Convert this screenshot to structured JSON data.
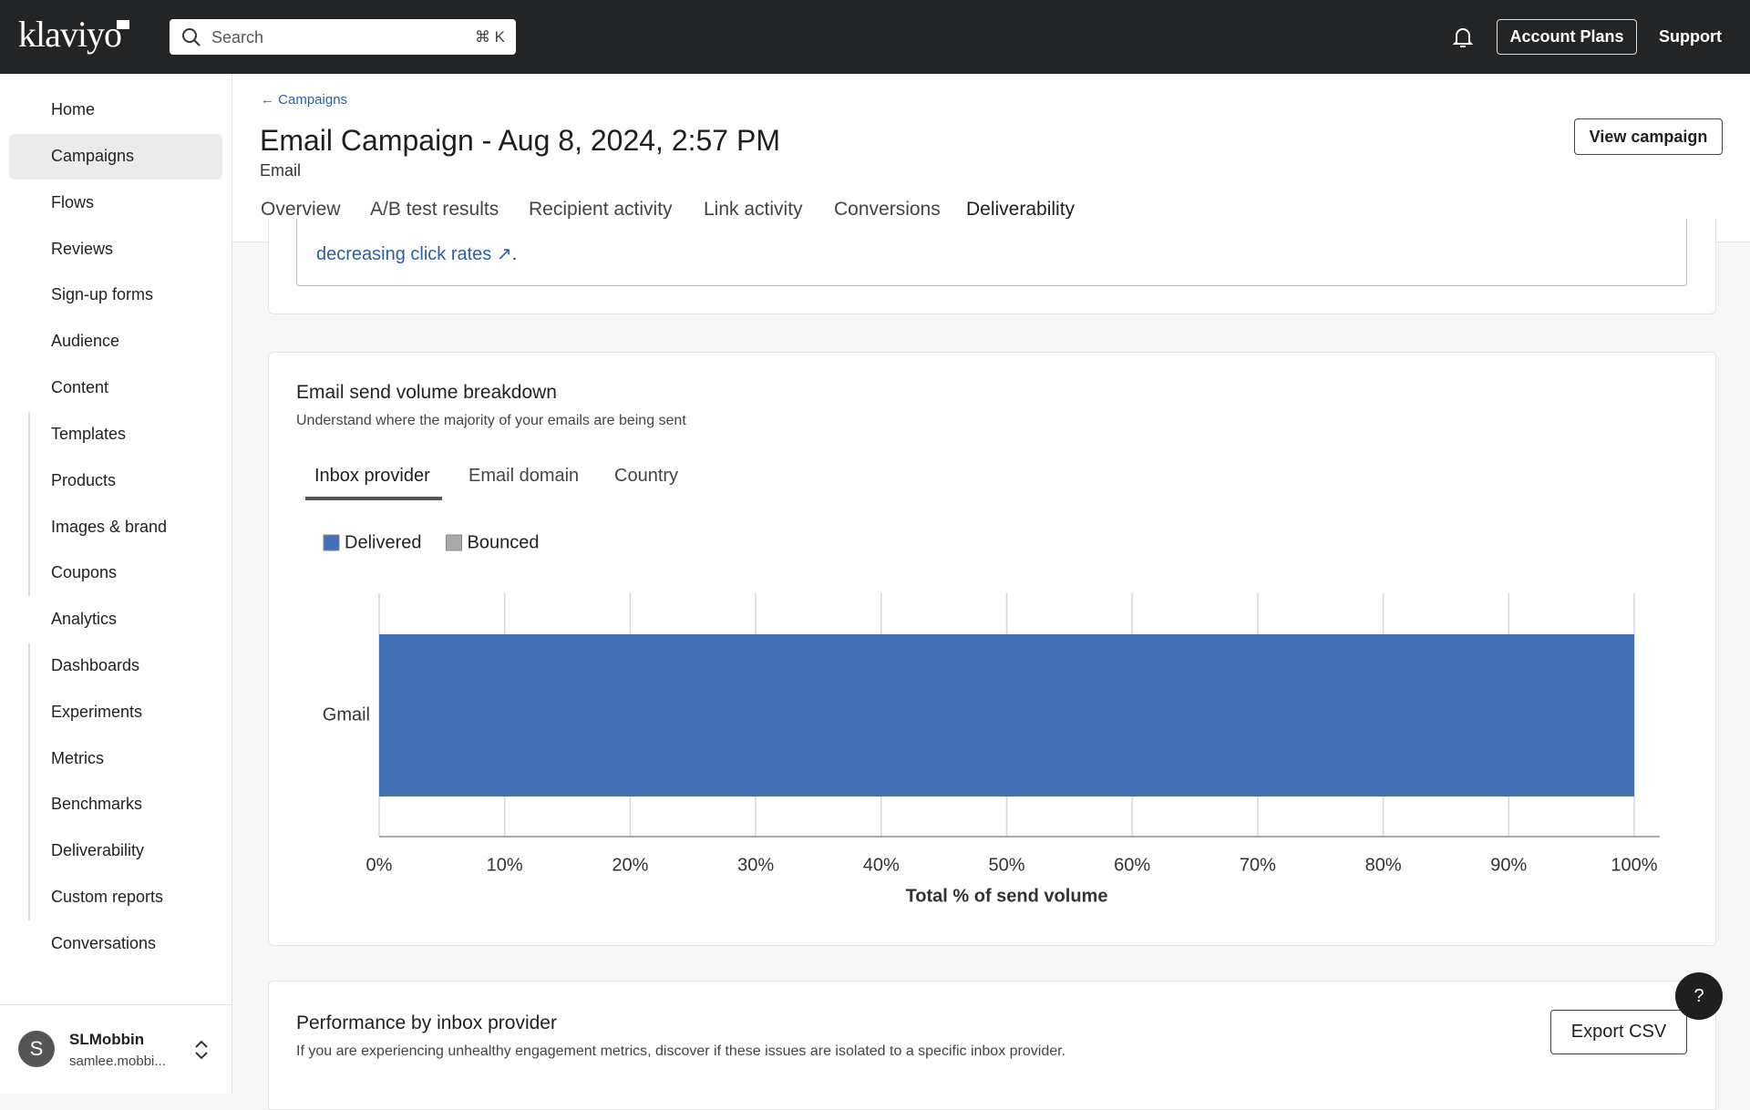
{
  "topbar": {
    "logo": "klaviyo",
    "search": "Search",
    "shortcut": "⌘ K",
    "account_plans": "Account Plans",
    "support": "Support"
  },
  "sidebar": {
    "items": [
      {
        "label": "Home",
        "level": 0
      },
      {
        "label": "Campaigns",
        "level": 0,
        "active": true
      },
      {
        "label": "Flows",
        "level": 0
      },
      {
        "label": "Reviews",
        "level": 0
      },
      {
        "label": "Sign-up forms",
        "level": 0
      },
      {
        "label": "Audience",
        "level": 0,
        "chevron": "down"
      },
      {
        "label": "Content",
        "level": 0,
        "chevron": "up"
      },
      {
        "label": "Templates",
        "level": 1
      },
      {
        "label": "Products",
        "level": 1
      },
      {
        "label": "Images & brand",
        "level": 1
      },
      {
        "label": "Coupons",
        "level": 1
      },
      {
        "label": "Analytics",
        "level": 0,
        "chevron": "up"
      },
      {
        "label": "Dashboards",
        "level": 1
      },
      {
        "label": "Experiments",
        "level": 1
      },
      {
        "label": "Metrics",
        "level": 1
      },
      {
        "label": "Benchmarks",
        "level": 1
      },
      {
        "label": "Deliverability",
        "level": 1
      },
      {
        "label": "Custom reports",
        "level": 1
      },
      {
        "label": "Conversations",
        "level": 0
      }
    ],
    "user": {
      "initial": "S",
      "name": "SLMobbin",
      "email": "samlee.mobbi..."
    }
  },
  "page": {
    "breadcrumb": "Campaigns",
    "title": "Email Campaign - Aug 8, 2024, 2:57 PM",
    "subtitle": "Email",
    "view_button": "View campaign",
    "tabs": [
      "Overview",
      "A/B test results",
      "Recipient activity",
      "Link activity",
      "Conversions",
      "Deliverability"
    ],
    "active_tab": 5
  },
  "tip": {
    "link": "decreasing click rates",
    "after": "."
  },
  "breakdown": {
    "title": "Email send volume breakdown",
    "subtitle": "Understand where the majority of your emails are being sent",
    "tabs": [
      "Inbox provider",
      "Email domain",
      "Country"
    ],
    "active_tab": 0
  },
  "chart_data": {
    "type": "hbar_stacked",
    "categories": [
      "Gmail"
    ],
    "series": [
      {
        "name": "Delivered",
        "color": "#4471b5",
        "values": [
          100
        ]
      },
      {
        "name": "Bounced",
        "color": "#a9a9a9",
        "values": [
          0
        ]
      }
    ],
    "xlim": [
      0,
      100
    ],
    "xticks": [
      {
        "value": 0,
        "label": "0%"
      },
      {
        "value": 10,
        "label": "10%"
      },
      {
        "value": 20,
        "label": "20%"
      },
      {
        "value": 30,
        "label": "30%"
      },
      {
        "value": 40,
        "label": "40%"
      },
      {
        "value": 50,
        "label": "50%"
      },
      {
        "value": 60,
        "label": "60%"
      },
      {
        "value": 70,
        "label": "70%"
      },
      {
        "value": 80,
        "label": "80%"
      },
      {
        "value": 90,
        "label": "90%"
      },
      {
        "value": 100,
        "label": "100%"
      }
    ],
    "xlabel": "Total % of send volume",
    "grid": true,
    "legend": "top-left"
  },
  "performance": {
    "title": "Performance by inbox provider",
    "subtitle": "If you are experiencing unhealthy engagement metrics, discover if these issues are isolated to a specific inbox provider.",
    "export": "Export CSV"
  },
  "help": "?"
}
